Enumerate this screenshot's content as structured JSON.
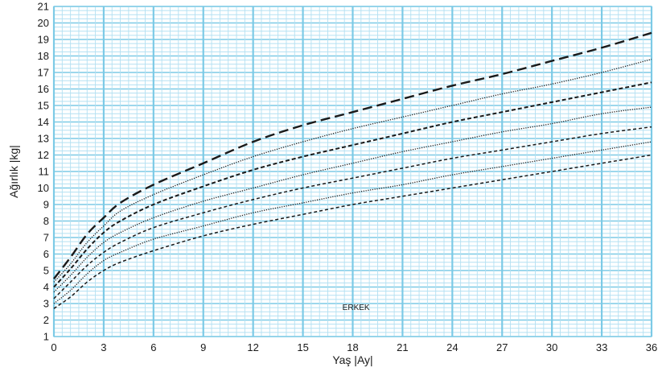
{
  "chart_data": {
    "type": "line",
    "title": "",
    "annotation": "ERKEK",
    "xlabel": "Yaş |Ay|",
    "ylabel": "Ağırlık |kg|",
    "xlim": [
      0,
      36
    ],
    "ylim": [
      1,
      21
    ],
    "xticks": [
      0,
      3,
      6,
      9,
      12,
      15,
      18,
      21,
      24,
      27,
      30,
      33,
      36
    ],
    "yticks": [
      1,
      2,
      3,
      4,
      5,
      6,
      7,
      8,
      9,
      10,
      11,
      12,
      13,
      14,
      15,
      16,
      17,
      18,
      19,
      20,
      21
    ],
    "grid": true,
    "colors": {
      "grid_minor": "#b3e0f2",
      "grid_major": "#7ccae6",
      "line": "#1a1a1a"
    },
    "x": [
      0,
      1,
      2,
      3,
      4,
      6,
      9,
      12,
      15,
      18,
      21,
      24,
      27,
      30,
      33,
      36
    ],
    "series": [
      {
        "dash": "long",
        "width": 2.4,
        "values": [
          4.5,
          5.8,
          7.2,
          8.2,
          9.1,
          10.2,
          11.5,
          12.8,
          13.8,
          14.6,
          15.4,
          16.2,
          16.9,
          17.7,
          18.5,
          19.4
        ]
      },
      {
        "dash": "dotted",
        "width": 1.3,
        "values": [
          4.3,
          5.4,
          6.7,
          7.7,
          8.6,
          9.6,
          10.8,
          11.9,
          12.8,
          13.6,
          14.3,
          15.0,
          15.7,
          16.3,
          17.0,
          17.8
        ]
      },
      {
        "dash": "medium",
        "width": 2.0,
        "values": [
          4.0,
          5.1,
          6.3,
          7.3,
          8.0,
          9.0,
          10.1,
          11.1,
          11.9,
          12.6,
          13.3,
          14.0,
          14.6,
          15.2,
          15.8,
          16.4
        ]
      },
      {
        "dash": "dotted",
        "width": 1.3,
        "values": [
          3.7,
          4.7,
          5.8,
          6.7,
          7.3,
          8.2,
          9.2,
          10.0,
          10.8,
          11.5,
          12.2,
          12.8,
          13.4,
          13.9,
          14.5,
          14.9
        ]
      },
      {
        "dash": "short",
        "width": 1.5,
        "values": [
          3.3,
          4.3,
          5.3,
          6.1,
          6.7,
          7.6,
          8.5,
          9.3,
          10.0,
          10.6,
          11.2,
          11.8,
          12.3,
          12.8,
          13.3,
          13.7
        ]
      },
      {
        "dash": "dotted",
        "width": 1.3,
        "values": [
          3.0,
          3.8,
          4.8,
          5.6,
          6.1,
          6.9,
          7.7,
          8.5,
          9.1,
          9.7,
          10.2,
          10.8,
          11.3,
          11.8,
          12.3,
          12.8
        ]
      },
      {
        "dash": "short",
        "width": 1.5,
        "values": [
          2.7,
          3.4,
          4.3,
          5.0,
          5.5,
          6.2,
          7.1,
          7.8,
          8.4,
          9.0,
          9.5,
          10.0,
          10.5,
          11.0,
          11.5,
          12.0
        ]
      }
    ]
  }
}
